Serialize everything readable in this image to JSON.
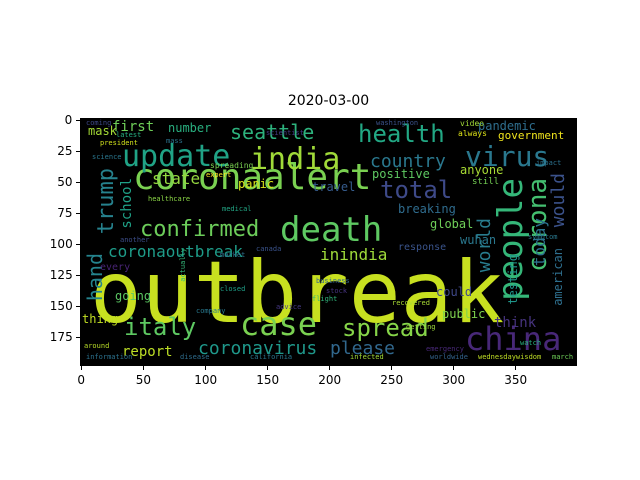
{
  "title": "2020-03-00",
  "x_ticks": [
    "0",
    "50",
    "100",
    "150",
    "200",
    "250",
    "300",
    "350"
  ],
  "y_ticks": [
    "0",
    "25",
    "50",
    "75",
    "100",
    "125",
    "150",
    "175"
  ],
  "words": [
    {
      "text": "outbreak",
      "color": "#c8e020",
      "big": true
    },
    {
      "text": "coronaalert",
      "color": "#7ad151"
    },
    {
      "text": "death",
      "color": "#5ec962"
    },
    {
      "text": "india",
      "color": "#a0da39"
    },
    {
      "text": "update",
      "color": "#20a386"
    },
    {
      "text": "people",
      "color": "#35b779"
    },
    {
      "text": "virus",
      "color": "#2a788e"
    },
    {
      "text": "china",
      "color": "#482878"
    },
    {
      "text": "health",
      "color": "#22a884"
    },
    {
      "text": "case",
      "color": "#7ad151"
    },
    {
      "text": "italy",
      "color": "#5ec962"
    },
    {
      "text": "spread",
      "color": "#86d549"
    },
    {
      "text": "corona",
      "color": "#44bf70"
    },
    {
      "text": "total",
      "color": "#3e4a89"
    },
    {
      "text": "trump",
      "color": "#26828e"
    },
    {
      "text": "confirmed",
      "color": "#6ccd5a"
    },
    {
      "text": "seattle",
      "color": "#2db27d"
    },
    {
      "text": "coronavirus",
      "color": "#1f988b"
    },
    {
      "text": "please",
      "color": "#31688e"
    },
    {
      "text": "hand",
      "color": "#25848e"
    },
    {
      "text": "country",
      "color": "#2a788e"
    },
    {
      "text": "coronaoutbreak",
      "color": "#1e9c89"
    },
    {
      "text": "inindia",
      "color": "#9fda3a"
    },
    {
      "text": "world",
      "color": "#287c8e"
    },
    {
      "text": "would",
      "color": "#3b528b"
    },
    {
      "text": "today",
      "color": "#2c728e"
    },
    {
      "text": "state",
      "color": "#95d840"
    },
    {
      "text": "report",
      "color": "#bddf26"
    },
    {
      "text": "school",
      "color": "#1fa287"
    },
    {
      "text": "first",
      "color": "#6ece58"
    },
    {
      "text": "number",
      "color": "#29af7f"
    },
    {
      "text": "mask",
      "color": "#a5db36"
    },
    {
      "text": "pandemic",
      "color": "#2e6e8e"
    },
    {
      "text": "government",
      "color": "#f1e51d"
    },
    {
      "text": "travel",
      "color": "#365c8d"
    },
    {
      "text": "panic",
      "color": "#d8e219"
    },
    {
      "text": "positive",
      "color": "#5ec962"
    },
    {
      "text": "anyone",
      "color": "#a8db34"
    },
    {
      "text": "breaking",
      "color": "#2f6c8e"
    },
    {
      "text": "global",
      "color": "#6ece58"
    },
    {
      "text": "could",
      "color": "#3f4889"
    },
    {
      "text": "wuhan",
      "color": "#2a788e"
    },
    {
      "text": "testing",
      "color": "#1f968b"
    },
    {
      "text": "american",
      "color": "#2e6f8e"
    },
    {
      "text": "public",
      "color": "#7fd34e"
    },
    {
      "text": "think",
      "color": "#46337e"
    },
    {
      "text": "going",
      "color": "#5cc863"
    },
    {
      "text": "thing",
      "color": "#c2df23"
    },
    {
      "text": "every",
      "color": "#482475"
    },
    {
      "text": "still",
      "color": "#75d054"
    },
    {
      "text": "response",
      "color": "#3a548c"
    },
    {
      "text": "video",
      "color": "#a2da37"
    },
    {
      "text": "always",
      "color": "#dde318"
    },
    {
      "text": "mass",
      "color": "#2c738e"
    },
    {
      "text": "president",
      "color": "#d0e11c"
    },
    {
      "text": "latest",
      "color": "#26ad81"
    },
    {
      "text": "spreading",
      "color": "#7ad151"
    },
    {
      "text": "science",
      "color": "#2a778e"
    },
    {
      "text": "coming",
      "color": "#3e4989"
    },
    {
      "text": "washington",
      "color": "#3b528b"
    },
    {
      "text": "around",
      "color": "#bade28"
    },
    {
      "text": "disease",
      "color": "#2e6d8e"
    },
    {
      "text": "california",
      "color": "#2a768e"
    },
    {
      "text": "infected",
      "color": "#a2da37"
    },
    {
      "text": "worldwide",
      "color": "#33638d"
    },
    {
      "text": "wednesdaywisdom",
      "color": "#c0df25"
    },
    {
      "text": "march",
      "color": "#6ece58"
    },
    {
      "text": "business",
      "color": "#32658e"
    },
    {
      "text": "canada",
      "color": "#3a538b"
    },
    {
      "text": "market",
      "color": "#2d708e"
    },
    {
      "text": "stock",
      "color": "#46337e"
    },
    {
      "text": "closed",
      "color": "#1fa088"
    },
    {
      "text": "company",
      "color": "#29798e"
    },
    {
      "text": "flight",
      "color": "#31b57b"
    },
    {
      "text": "healthcare",
      "color": "#8bd646"
    },
    {
      "text": "information",
      "color": "#2c728e"
    },
    {
      "text": "another",
      "color": "#3d4e8a"
    },
    {
      "text": "medical",
      "color": "#22a785"
    },
    {
      "text": "recovered",
      "color": "#a8db34"
    },
    {
      "text": "scientist",
      "color": "#443a83"
    },
    {
      "text": "impact",
      "color": "#2c728e"
    },
    {
      "text": "expert",
      "color": "#fde725"
    },
    {
      "text": "symptom",
      "color": "#2a788e"
    },
    {
      "text": "emergency",
      "color": "#482878"
    },
    {
      "text": "watch",
      "color": "#29af7f"
    },
    {
      "text": "actually",
      "color": "#35b779"
    },
    {
      "text": "advice",
      "color": "#453882"
    },
    {
      "text": "getting",
      "color": "#9dd93b"
    }
  ]
}
